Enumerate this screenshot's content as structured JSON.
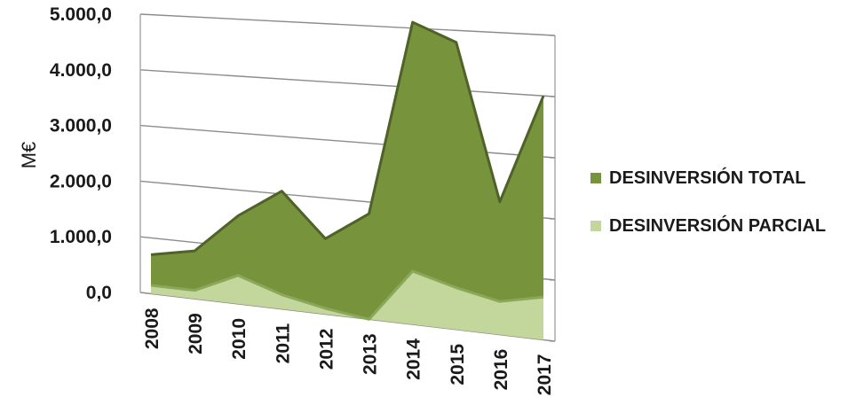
{
  "chart_data": {
    "type": "area",
    "ylabel": "M€",
    "ylim": [
      0,
      5000
    ],
    "y_ticks": [
      "0,0",
      "1.000,0",
      "2.000,0",
      "3.000,0",
      "4.000,0",
      "5.000,0"
    ],
    "categories": [
      "2008",
      "2009",
      "2010",
      "2011",
      "2012",
      "2013",
      "2014",
      "2015",
      "2016",
      "2017"
    ],
    "series": [
      {
        "name": "DESINVERSIÓN  TOTAL",
        "color": "#77933c",
        "values": [
          700,
          850,
          1550,
          2050,
          1300,
          1800,
          5100,
          4800,
          2200,
          4000
        ]
      },
      {
        "name": "DESINVERSIÓN  PARCIAL",
        "color": "#c3d69b",
        "values": [
          150,
          150,
          500,
          250,
          100,
          0,
          900,
          700,
          550,
          700
        ]
      }
    ],
    "grid": true,
    "legend_position": "right",
    "style": "3d"
  }
}
